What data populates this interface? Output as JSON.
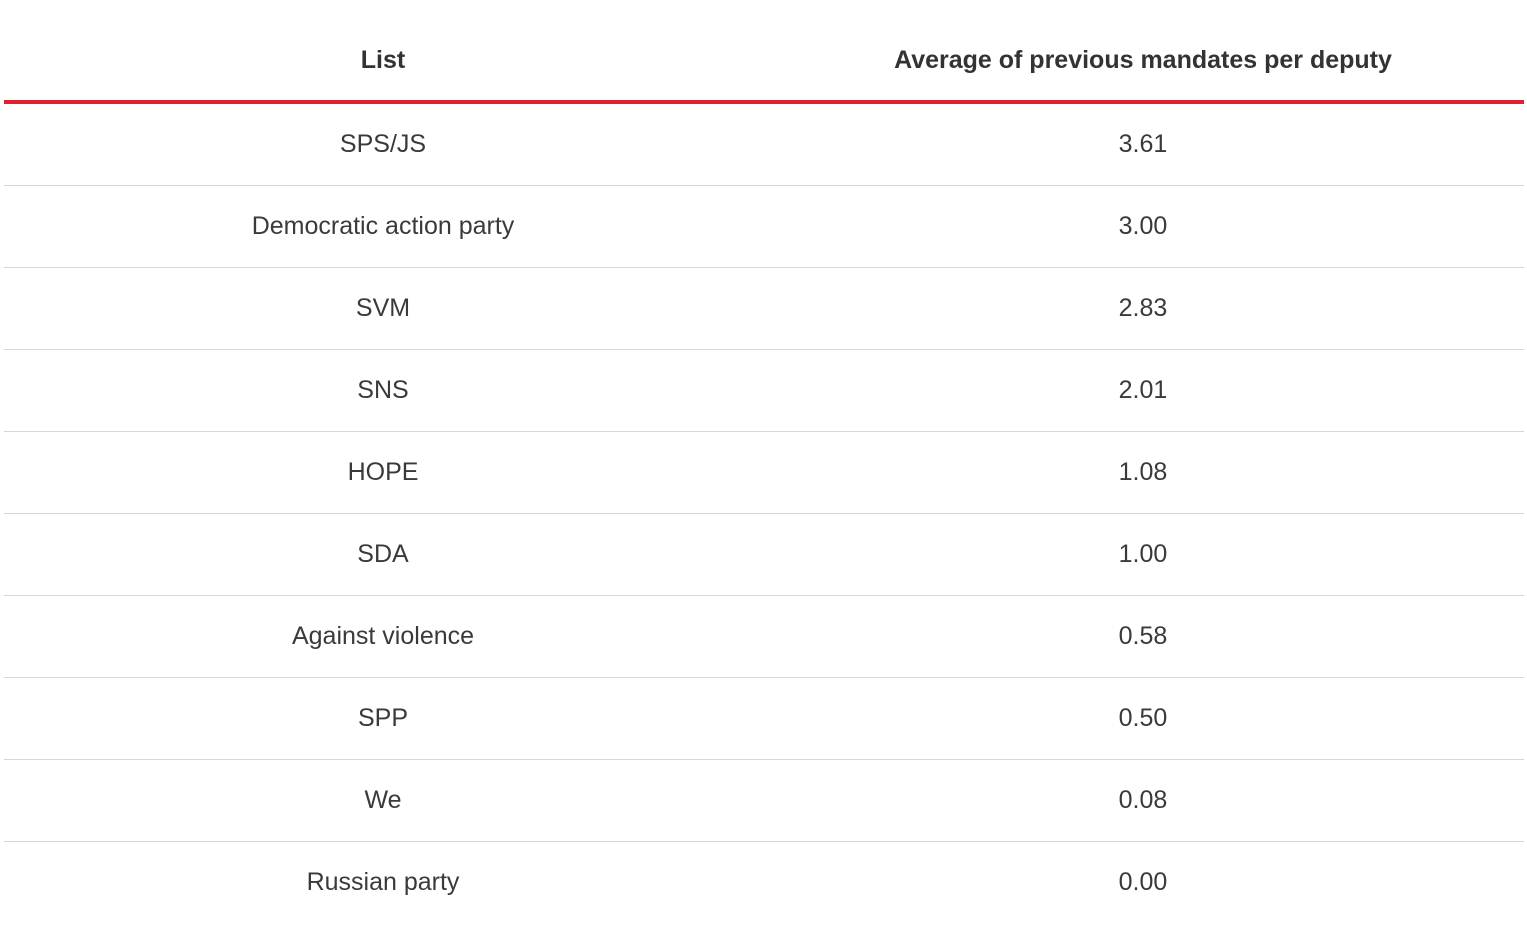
{
  "chart_data": {
    "type": "table",
    "columns": [
      "List",
      "Average of previous mandates per deputy"
    ],
    "rows": [
      {
        "list": "SPS/JS",
        "value": "3.61"
      },
      {
        "list": "Democratic action party",
        "value": "3.00"
      },
      {
        "list": "SVM",
        "value": "2.83"
      },
      {
        "list": "SNS",
        "value": "2.01"
      },
      {
        "list": "HOPE",
        "value": "1.08"
      },
      {
        "list": "SDA",
        "value": "1.00"
      },
      {
        "list": "Against violence",
        "value": "0.58"
      },
      {
        "list": "SPP",
        "value": "0.50"
      },
      {
        "list": "We",
        "value": "0.08"
      },
      {
        "list": "Russian party",
        "value": "0.00"
      }
    ]
  },
  "colors": {
    "header_rule": "#e0202a",
    "row_divider": "#d6d6d6",
    "text": "#333333"
  }
}
